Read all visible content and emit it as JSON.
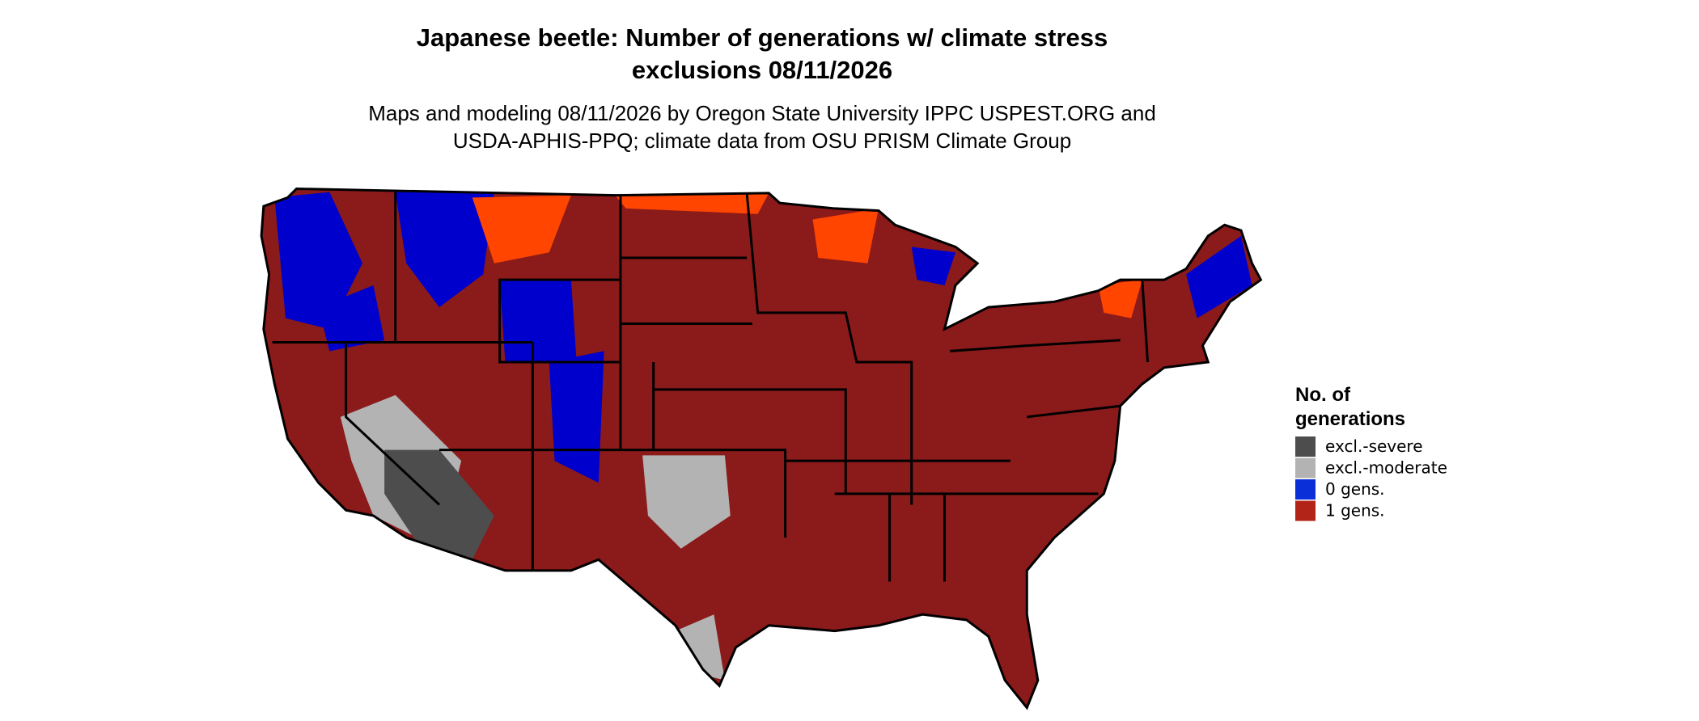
{
  "title": [
    "Japanese beetle: Number of generations w/ climate stress",
    "exclusions 08/11/2026"
  ],
  "subtitle": [
    "Maps and modeling 08/11/2026 by Oregon State University IPPC USPEST.ORG and",
    "USDA-APHIS-PPQ; climate data from OSU PRISM Climate Group"
  ],
  "legend": {
    "title": [
      "No. of",
      "generations"
    ],
    "items": [
      {
        "label": "excl.-severe",
        "color": "#4d4d4d"
      },
      {
        "label": "excl.-moderate",
        "color": "#b3b3b3"
      },
      {
        "label": "0 gens.",
        "color": "#0a2fd8"
      },
      {
        "label": "1 gens.",
        "color": "#b22418"
      }
    ]
  }
}
